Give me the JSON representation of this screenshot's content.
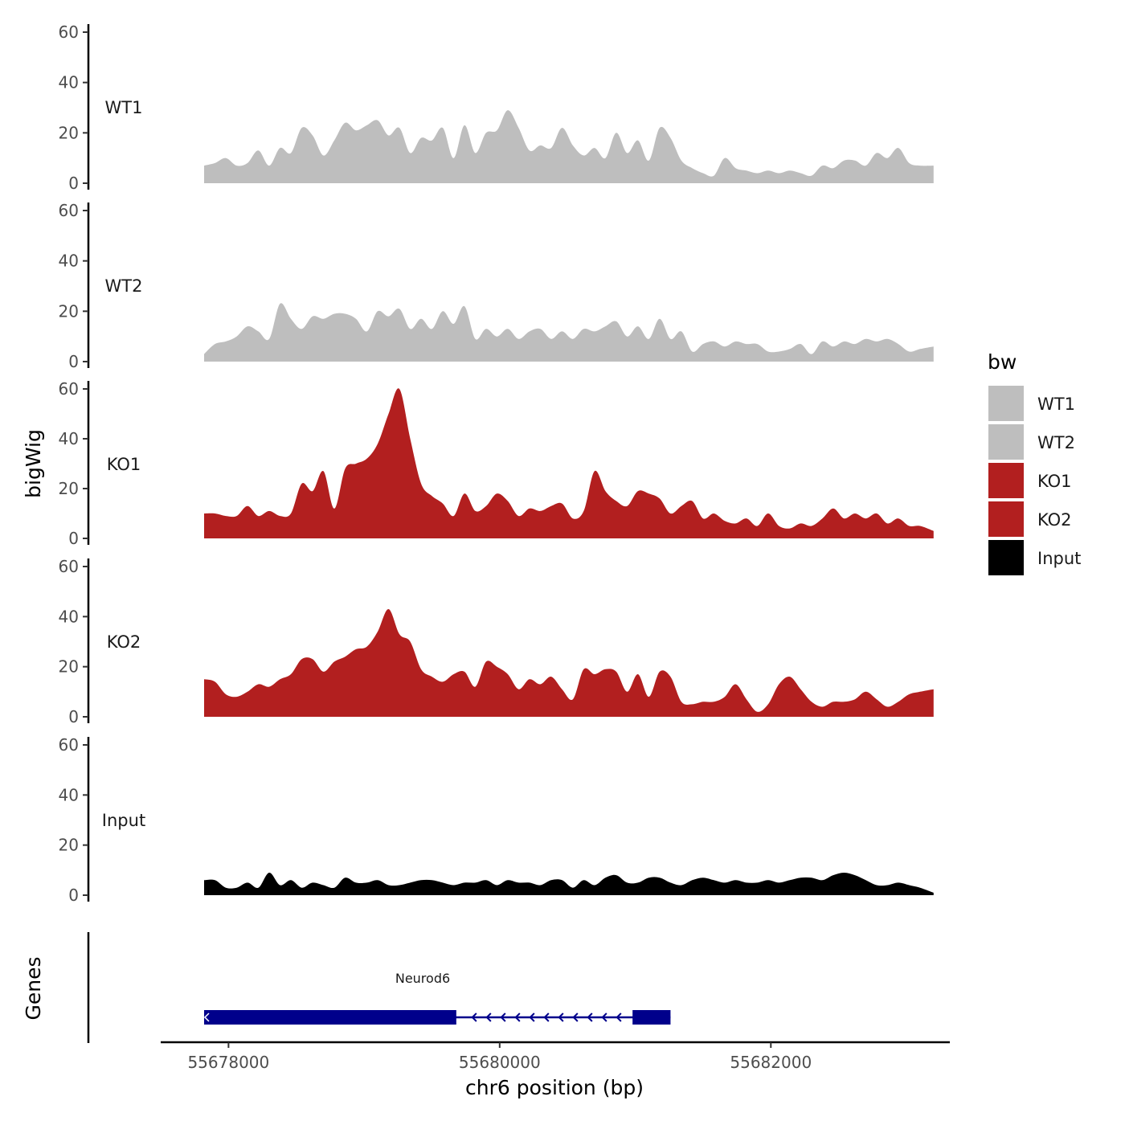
{
  "chart_data": {
    "type": "area",
    "ylabel": "bigWig",
    "xlabel": "chr6 position (bp)",
    "xlim": [
      55677500,
      55683320
    ],
    "ylim": [
      0,
      60
    ],
    "y_ticks": [
      0,
      20,
      40,
      60
    ],
    "x_ticks": [
      55678000,
      55680000,
      55682000
    ],
    "x_tick_labels": [
      "55678000",
      "55680000",
      "55682000"
    ],
    "x": [
      55677820,
      55677900,
      55677980,
      55678060,
      55678140,
      55678220,
      55678300,
      55678380,
      55678460,
      55678540,
      55678620,
      55678700,
      55678780,
      55678860,
      55678940,
      55679020,
      55679100,
      55679180,
      55679260,
      55679340,
      55679420,
      55679500,
      55679580,
      55679660,
      55679740,
      55679820,
      55679900,
      55679980,
      55680060,
      55680140,
      55680220,
      55680300,
      55680380,
      55680460,
      55680540,
      55680620,
      55680700,
      55680780,
      55680860,
      55680940,
      55681020,
      55681100,
      55681180,
      55681260,
      55681340,
      55681420,
      55681500,
      55681580,
      55681660,
      55681740,
      55681820,
      55681900,
      55681980,
      55682060,
      55682140,
      55682220,
      55682300,
      55682380,
      55682460,
      55682540,
      55682620,
      55682700,
      55682780,
      55682860,
      55682940,
      55683020,
      55683100,
      55683200
    ],
    "series": [
      {
        "name": "WT1",
        "color": "#bebebe",
        "values": [
          7,
          8,
          10,
          7,
          8,
          13,
          7,
          14,
          12,
          22,
          19,
          11,
          17,
          24,
          21,
          23,
          25,
          19,
          22,
          12,
          18,
          17,
          22,
          10,
          23,
          12,
          20,
          21,
          29,
          22,
          13,
          15,
          14,
          22,
          15,
          11,
          14,
          10,
          20,
          12,
          17,
          9,
          22,
          18,
          9,
          6,
          4,
          3,
          10,
          6,
          5,
          4,
          5,
          4,
          5,
          4,
          3,
          7,
          6,
          9,
          9,
          7,
          12,
          10,
          14,
          8,
          7,
          7
        ]
      },
      {
        "name": "WT2",
        "color": "#bebebe",
        "values": [
          3,
          7,
          8,
          10,
          14,
          12,
          9,
          23,
          17,
          13,
          18,
          17,
          19,
          19,
          17,
          12,
          20,
          18,
          21,
          13,
          17,
          13,
          20,
          15,
          22,
          9,
          13,
          10,
          13,
          9,
          12,
          13,
          9,
          12,
          9,
          13,
          12,
          14,
          16,
          10,
          14,
          9,
          17,
          9,
          12,
          4,
          7,
          8,
          6,
          8,
          7,
          7,
          4,
          4,
          5,
          7,
          3,
          8,
          6,
          8,
          7,
          9,
          8,
          9,
          7,
          4,
          5,
          6
        ]
      },
      {
        "name": "KO1",
        "color": "#b21f1f",
        "values": [
          10,
          10,
          9,
          9,
          13,
          9,
          11,
          9,
          10,
          22,
          19,
          27,
          12,
          28,
          30,
          32,
          38,
          50,
          60,
          40,
          22,
          17,
          14,
          9,
          18,
          11,
          13,
          18,
          15,
          9,
          12,
          11,
          13,
          14,
          8,
          11,
          27,
          19,
          15,
          13,
          19,
          18,
          16,
          10,
          13,
          15,
          8,
          10,
          7,
          6,
          8,
          5,
          10,
          5,
          4,
          6,
          5,
          8,
          12,
          8,
          10,
          8,
          10,
          6,
          8,
          5,
          5,
          3
        ]
      },
      {
        "name": "KO2",
        "color": "#b21f1f",
        "values": [
          15,
          14,
          9,
          8,
          10,
          13,
          12,
          15,
          17,
          23,
          23,
          18,
          22,
          24,
          27,
          28,
          34,
          43,
          33,
          30,
          19,
          16,
          14,
          17,
          18,
          12,
          22,
          20,
          17,
          11,
          15,
          13,
          16,
          11,
          7,
          19,
          17,
          19,
          18,
          10,
          17,
          8,
          18,
          16,
          6,
          5,
          6,
          6,
          8,
          13,
          7,
          2,
          5,
          13,
          16,
          11,
          6,
          4,
          6,
          6,
          7,
          10,
          7,
          4,
          6,
          9,
          10,
          11
        ]
      },
      {
        "name": "Input",
        "color": "#000000",
        "values": [
          6,
          6,
          3,
          3,
          5,
          3,
          9,
          4,
          6,
          3,
          5,
          4,
          3,
          7,
          5,
          5,
          6,
          4,
          4,
          5,
          6,
          6,
          5,
          4,
          5,
          5,
          6,
          4,
          6,
          5,
          5,
          4,
          6,
          6,
          3,
          6,
          4,
          7,
          8,
          5,
          5,
          7,
          7,
          5,
          4,
          6,
          7,
          6,
          5,
          6,
          5,
          5,
          6,
          5,
          6,
          7,
          7,
          6,
          8,
          9,
          8,
          6,
          4,
          4,
          5,
          4,
          3,
          1
        ]
      }
    ],
    "genes": {
      "title": "Genes",
      "name": "Neurod6",
      "strand": "-",
      "start": 55677820,
      "end": 55681260,
      "exons": [
        [
          55677820,
          55679680
        ],
        [
          55680980,
          55681260
        ]
      ],
      "color": "#00008b"
    },
    "legend": {
      "title": "bw",
      "position": "right",
      "entries": [
        {
          "label": "WT1",
          "color": "#bebebe"
        },
        {
          "label": "WT2",
          "color": "#bebebe"
        },
        {
          "label": "KO1",
          "color": "#b21f1f"
        },
        {
          "label": "KO2",
          "color": "#b21f1f"
        },
        {
          "label": "Input",
          "color": "#000000"
        }
      ]
    }
  }
}
